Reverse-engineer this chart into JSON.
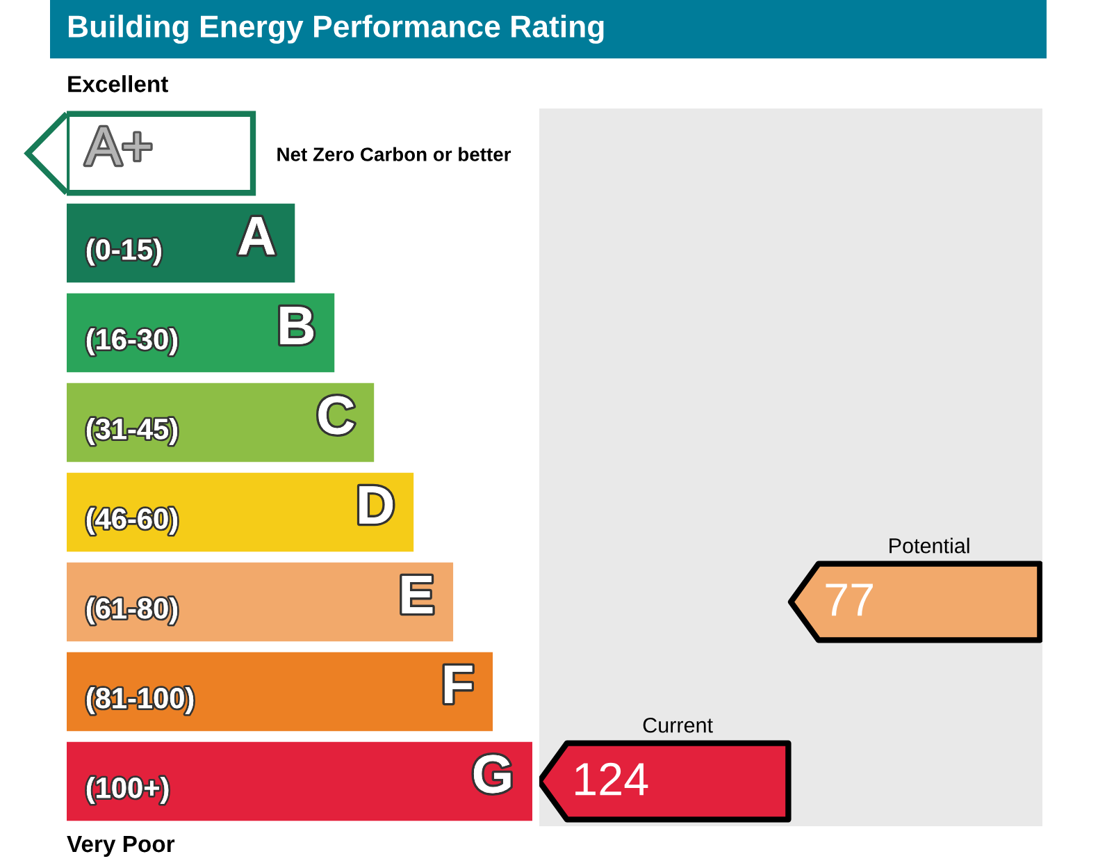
{
  "chart_data": {
    "type": "other",
    "title": "Building Energy Performance Rating",
    "categories": [
      "A+",
      "A",
      "B",
      "C",
      "D",
      "E",
      "F",
      "G"
    ],
    "colors": [
      "#ffffff",
      "#177b57",
      "#2aa45a",
      "#8dbe45",
      "#f5cc18",
      "#f2a96b",
      "#ec8024",
      "#e3213c"
    ],
    "value_labels": [
      null,
      "(0-15)",
      "(16-30)",
      "(31-45)",
      "(46-60)",
      "(61-80)",
      "(81-100)",
      "(100+)"
    ],
    "data_labels": true,
    "series": [
      {
        "name": "Current",
        "values": [
          null,
          null,
          null,
          null,
          null,
          null,
          null,
          124
        ]
      },
      {
        "name": "Potential",
        "values": [
          null,
          null,
          null,
          null,
          null,
          77,
          null,
          null
        ]
      }
    ],
    "annotations": [
      "Excellent",
      "Net Zero Carbon or better",
      "Very Poor"
    ]
  }
}
